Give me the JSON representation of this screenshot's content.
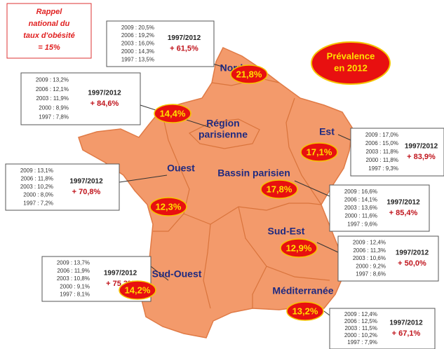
{
  "note": [
    "Rappel",
    "national du",
    "taux d'obésité",
    "= 15%"
  ],
  "legend_bubble": [
    "Prévalence",
    "en 2012"
  ],
  "regions": [
    {
      "name": [
        "Nord"
      ],
      "prevalence": "21,8%",
      "history": [
        "2009 : 20,5%",
        "2006 : 19,2%",
        "2003 : 16,0%",
        "2000 : 14,3%",
        "1997 : 13,5%"
      ],
      "period": "1997/2012",
      "change": "+ 61,5%"
    },
    {
      "name": [
        "Région",
        "parisienne"
      ],
      "prevalence": "14,4%",
      "history": [
        "2009 : 13,2%",
        "2006 : 12,1%",
        "2003 : 11,9%",
        "2000 : 8,9%",
        "1997 : 7,8%"
      ],
      "period": "1997/2012",
      "change": "+ 84,6%"
    },
    {
      "name": [
        "Est"
      ],
      "prevalence": "17,1%",
      "history": [
        "2009 : 17,0%",
        "2006 : 15,0%",
        "2003 : 11,8%",
        "2000 : 11,8%",
        "1997 : 9,3%"
      ],
      "period": "1997/2012",
      "change": "+ 83,9%"
    },
    {
      "name": [
        "Ouest"
      ],
      "prevalence": "12,3%",
      "history": [
        "2009 : 13,1%",
        "2006 : 11,8%",
        "2003 : 10,2%",
        "2000 : 8,0%",
        "1997 : 7,2%"
      ],
      "period": "1997/2012",
      "change": "+ 70,8%"
    },
    {
      "name": [
        "Bassin parisien"
      ],
      "prevalence": "17,8%",
      "history": [
        "2009 : 16,6%",
        "2006 : 14,1%",
        "2003 : 13,6%",
        "2000 : 11,6%",
        "1997 : 9,6%"
      ],
      "period": "1997/2012",
      "change": "+ 85,4%"
    },
    {
      "name": [
        "Sud-Est"
      ],
      "prevalence": "12,9%",
      "history": [
        "2009 : 12,4%",
        "2006 : 11,3%",
        "2003 : 10,6%",
        "2000 : 9,2%",
        "1997 : 8,6%"
      ],
      "period": "1997/2012",
      "change": "+ 50,0%"
    },
    {
      "name": [
        "Sud-Ouest"
      ],
      "prevalence": "14,2%",
      "history": [
        "2009 : 13,7%",
        "2006 : 11,9%",
        "2003 : 10,8%",
        "2000 : 9,1%",
        "1997 : 8,1%"
      ],
      "period": "1997/2012",
      "change": "+ 75,3%"
    },
    {
      "name": [
        "Méditerranée"
      ],
      "prevalence": "13,2%",
      "history": [
        "2009 : 12,4%",
        "2006 : 12,5%",
        "2003 : 11,5%",
        "2000 : 10,2%",
        "1997 : 7,9%"
      ],
      "period": "1997/2012",
      "change": "+ 67,1%"
    }
  ]
}
